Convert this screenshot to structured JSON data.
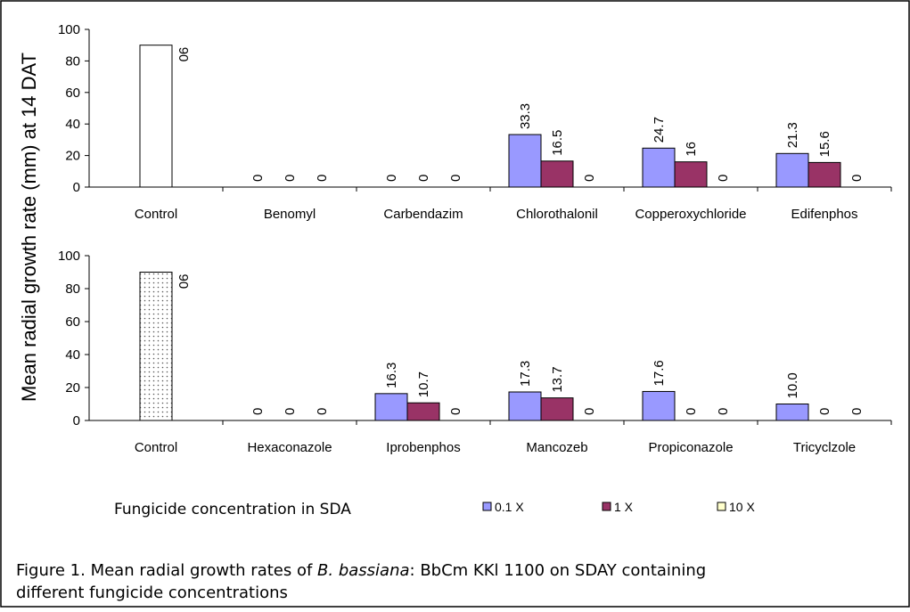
{
  "y_label": "Mean radial growth rate (mm) at 14 DAT",
  "legend_title": "Fungicide concentration in SDA",
  "caption": {
    "before": "Figure 1. Mean radial growth rates of ",
    "italic": "B. bassiana",
    "after": ": BbCm KKl 1100 on SDAY containing",
    "line2": "different fungicide concentrations"
  },
  "chart_data": [
    {
      "type": "bar",
      "categories": [
        "Control",
        "Benomyl",
        "Carbendazim",
        "Chlorothalonil",
        "Copperoxychloride",
        "Edifenphos"
      ],
      "ylim": [
        0,
        100
      ],
      "yticks": [
        0,
        20,
        40,
        60,
        80,
        100
      ],
      "series": [
        {
          "color": "#ffffff",
          "values": [
            90,
            null,
            null,
            null,
            null,
            null
          ]
        },
        {
          "name": "0.1 X",
          "color": "#9999ff",
          "values": [
            null,
            0,
            0,
            33.3,
            24.7,
            21.3
          ]
        },
        {
          "name": "1 X",
          "color": "#993366",
          "values": [
            null,
            0,
            0,
            16.5,
            16,
            15.6
          ]
        },
        {
          "name": "10 X",
          "color": "#ffffcc",
          "values": [
            null,
            0,
            0,
            0,
            0,
            0
          ]
        }
      ]
    },
    {
      "type": "bar",
      "categories": [
        "Control",
        "Hexaconazole",
        "Iprobenphos",
        "Mancozeb",
        "Propiconazole",
        "Tricyclzole"
      ],
      "ylim": [
        0,
        100
      ],
      "yticks": [
        0,
        20,
        40,
        60,
        80,
        100
      ],
      "series": [
        {
          "color": "#ffffff",
          "pattern": "dots",
          "values": [
            90,
            null,
            null,
            null,
            null,
            null
          ]
        },
        {
          "color": "#9999ff",
          "values": [
            null,
            0,
            16.3,
            17.3,
            17.6,
            10.0
          ],
          "value_labels": [
            null,
            "0",
            "16.3",
            "17.3",
            "17.6",
            "10.0"
          ]
        },
        {
          "color": "#993366",
          "values": [
            null,
            0,
            10.7,
            13.7,
            0,
            0
          ]
        },
        {
          "color": "#ffffcc",
          "values": [
            null,
            0,
            0,
            0,
            0,
            0
          ]
        }
      ]
    }
  ]
}
